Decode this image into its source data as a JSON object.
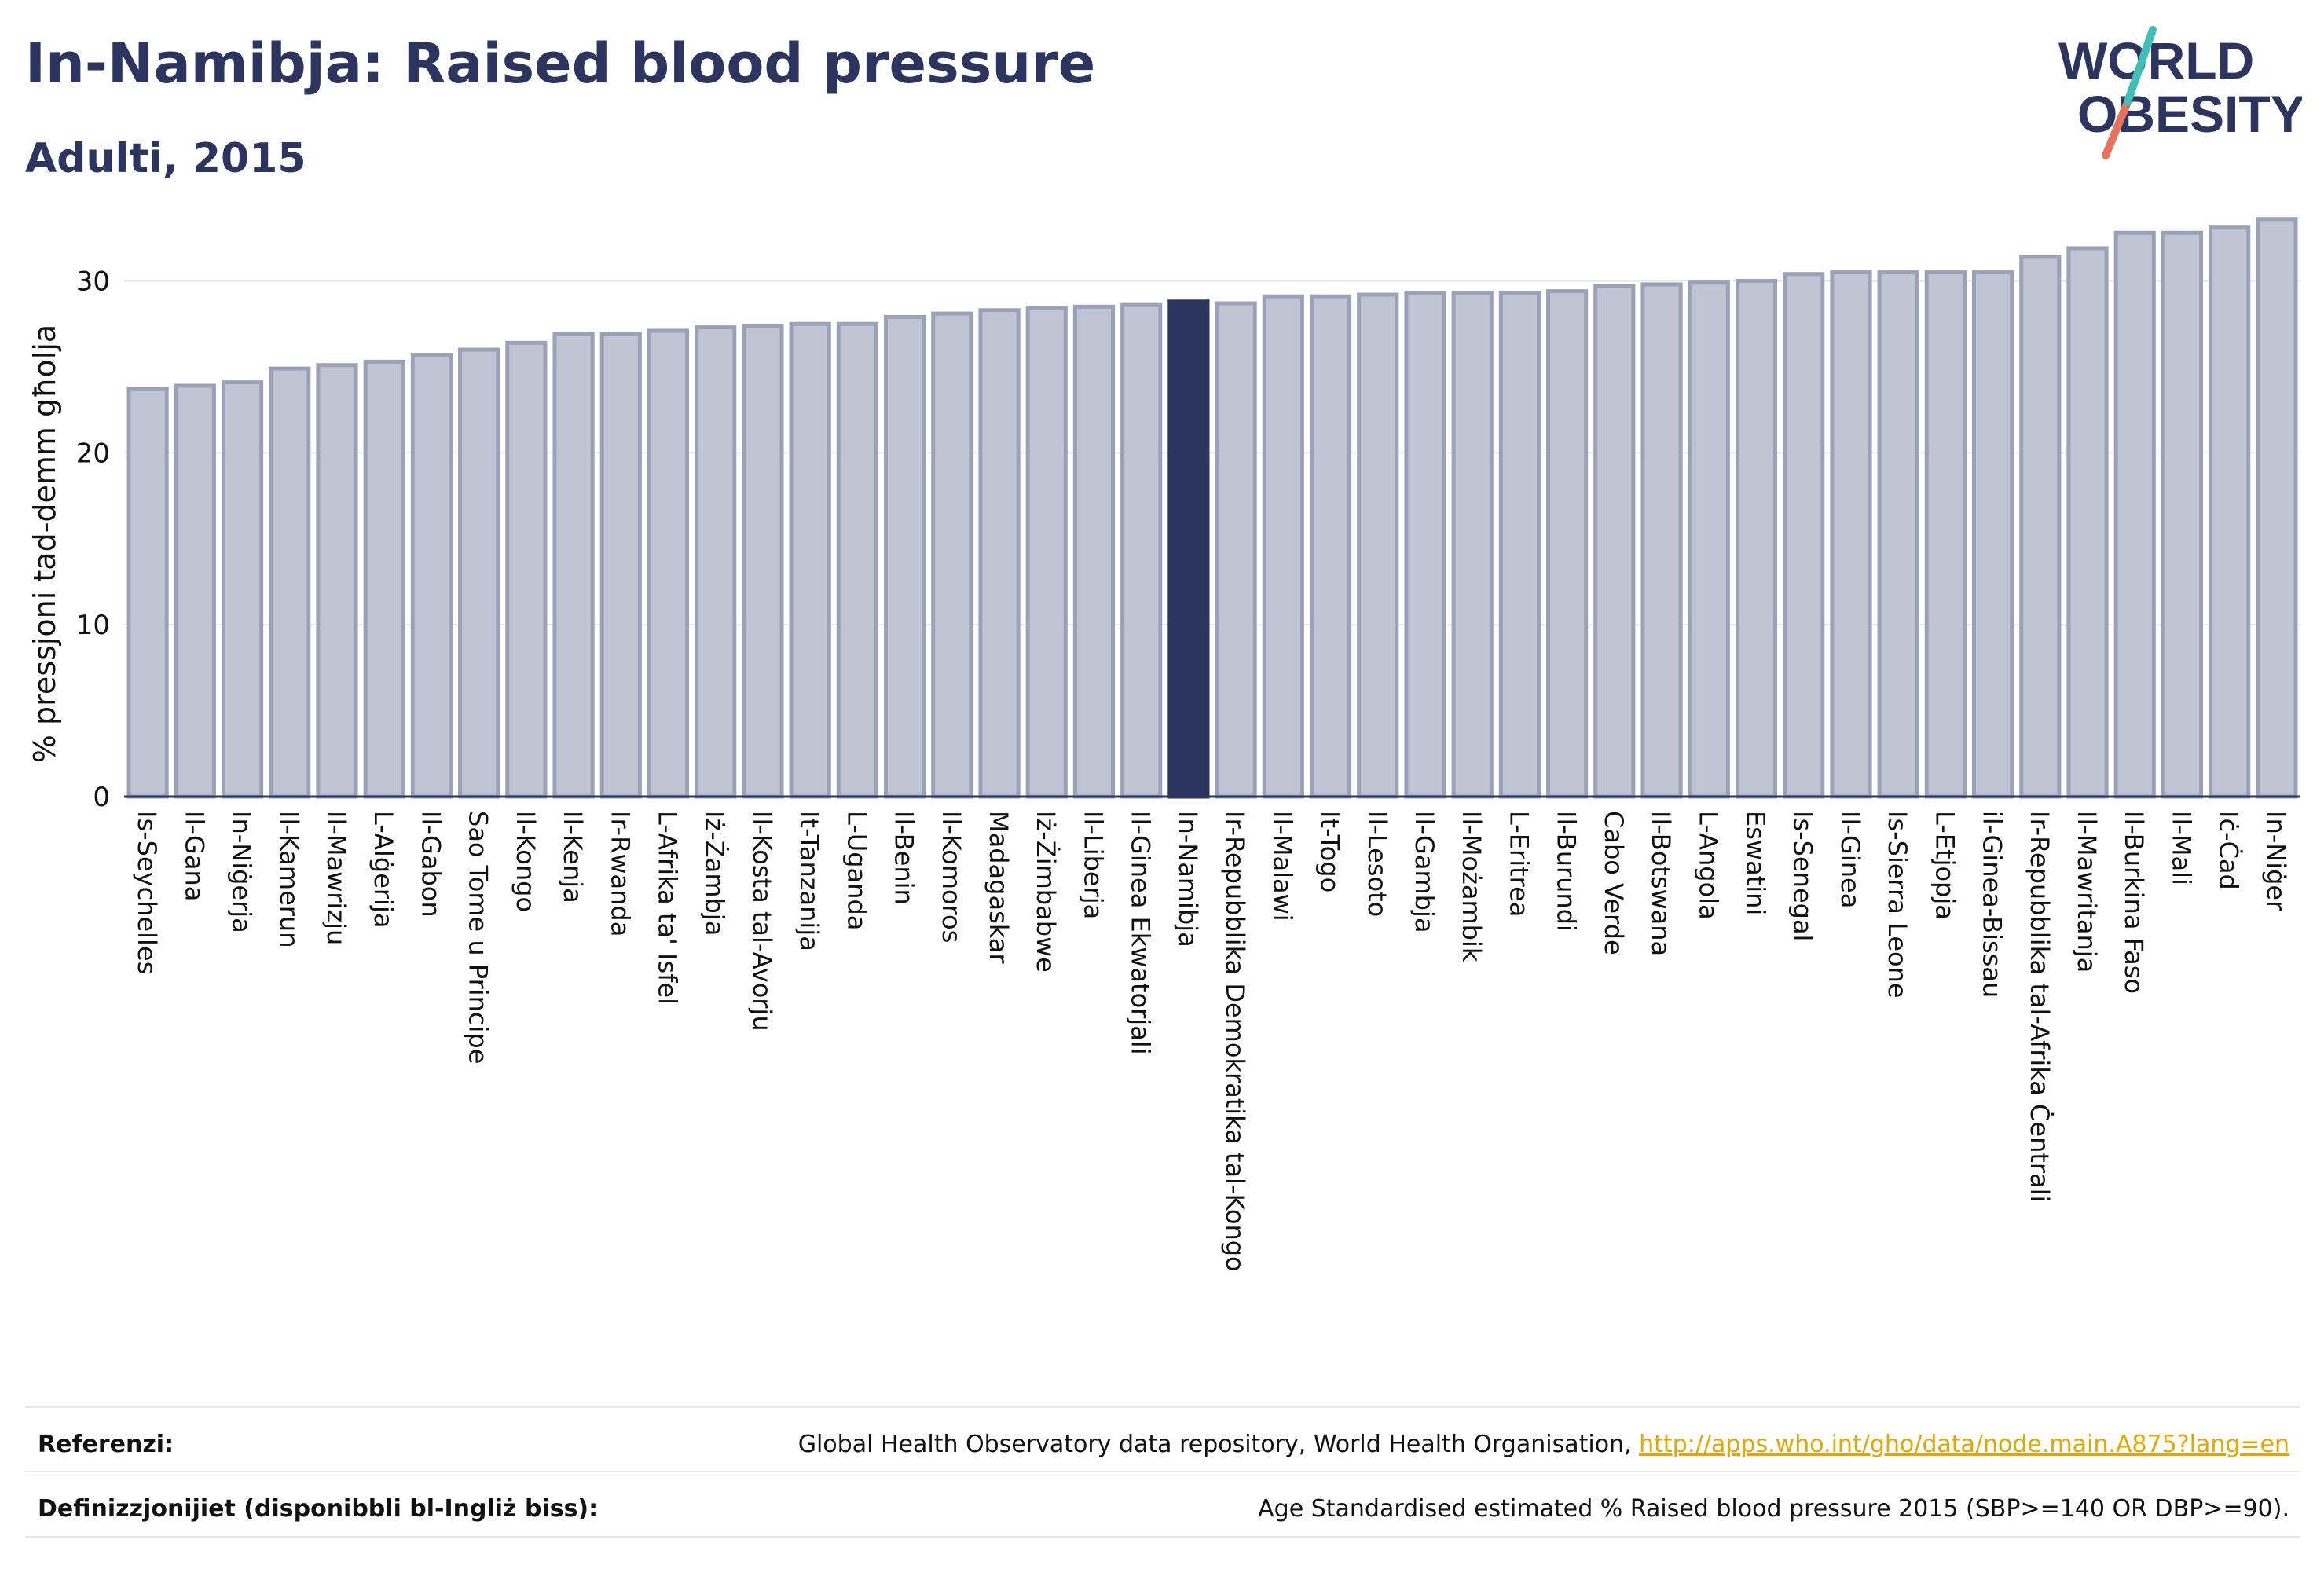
{
  "header": {
    "title": "In-Namibja: Raised blood pressure",
    "subtitle": "Adulti, 2015"
  },
  "logo": {
    "line1": "WORLD",
    "line2": "OBESITY"
  },
  "chart_data": {
    "type": "bar",
    "ylabel": "% pressjoni tad-demm għolja",
    "ylim": [
      0,
      34
    ],
    "yticks": [
      0,
      10,
      20,
      30
    ],
    "grid": true,
    "highlight": "In-Namibja",
    "colors": {
      "bar": "#c1c5d3",
      "bar_border": "#9aa1b8",
      "highlight": "#2b3560"
    },
    "categories": [
      "Is-Seychelles",
      "Il-Gana",
      "In-Niġerja",
      "Il-Kamerun",
      "Il-Mawrizju",
      "L-Alġerija",
      "Il-Gabon",
      "Sao Tome u Principe",
      "Il-Kongo",
      "Il-Kenja",
      "Ir-Rwanda",
      "L-Afrika ta' Isfel",
      "Iż-Żambja",
      "Il-Kosta tal-Avorju",
      "It-Tanzanija",
      "L-Uganda",
      "Il-Benin",
      "Il-Komoros",
      "Madagaskar",
      "Iż-Żimbabwe",
      "Il-Liberja",
      "Il-Ginea Ekwatorjali",
      "In-Namibja",
      "Ir-Repubblika Demokratika tal-Kongo",
      "Il-Malawi",
      "It-Togo",
      "Il-Lesoto",
      "Il-Gambja",
      "Il-Możambik",
      "L-Eritrea",
      "Il-Burundi",
      "Cabo Verde",
      "Il-Botswana",
      "L-Angola",
      "Eswatini",
      "Is-Senegal",
      "Il-Ginea",
      "Is-Sierra Leone",
      "L-Etjopja",
      "il-Ginea-Bissau",
      "Ir-Repubblika tal-Afrika Ċentrali",
      "Il-Mawritanja",
      "Il-Burkina Faso",
      "Il-Mali",
      "Iċ-Ċad",
      "In-Niġer"
    ],
    "values": [
      23.7,
      23.9,
      24.1,
      24.9,
      25.1,
      25.3,
      25.7,
      26.0,
      26.4,
      26.9,
      26.9,
      27.1,
      27.3,
      27.4,
      27.5,
      27.5,
      27.9,
      28.1,
      28.3,
      28.4,
      28.5,
      28.6,
      28.8,
      28.7,
      29.1,
      29.1,
      29.2,
      29.3,
      29.3,
      29.3,
      29.4,
      29.7,
      29.8,
      29.9,
      30.0,
      30.4,
      30.5,
      30.5,
      30.5,
      30.5,
      31.4,
      31.9,
      32.8,
      32.8,
      33.1,
      33.6
    ]
  },
  "footer": {
    "ref_label": "Referenzi:",
    "ref_text": "Global Health Observatory data repository, World Health Organisation, ",
    "ref_link": "http://apps.who.int/gho/data/node.main.A875?lang=en",
    "def_label": "Definizzjonijiet (disponibbli bl-Ingliż biss):",
    "def_text": "Age Standardised estimated % Raised blood pressure 2015 (SBP>=140 OR DBP>=90)."
  }
}
